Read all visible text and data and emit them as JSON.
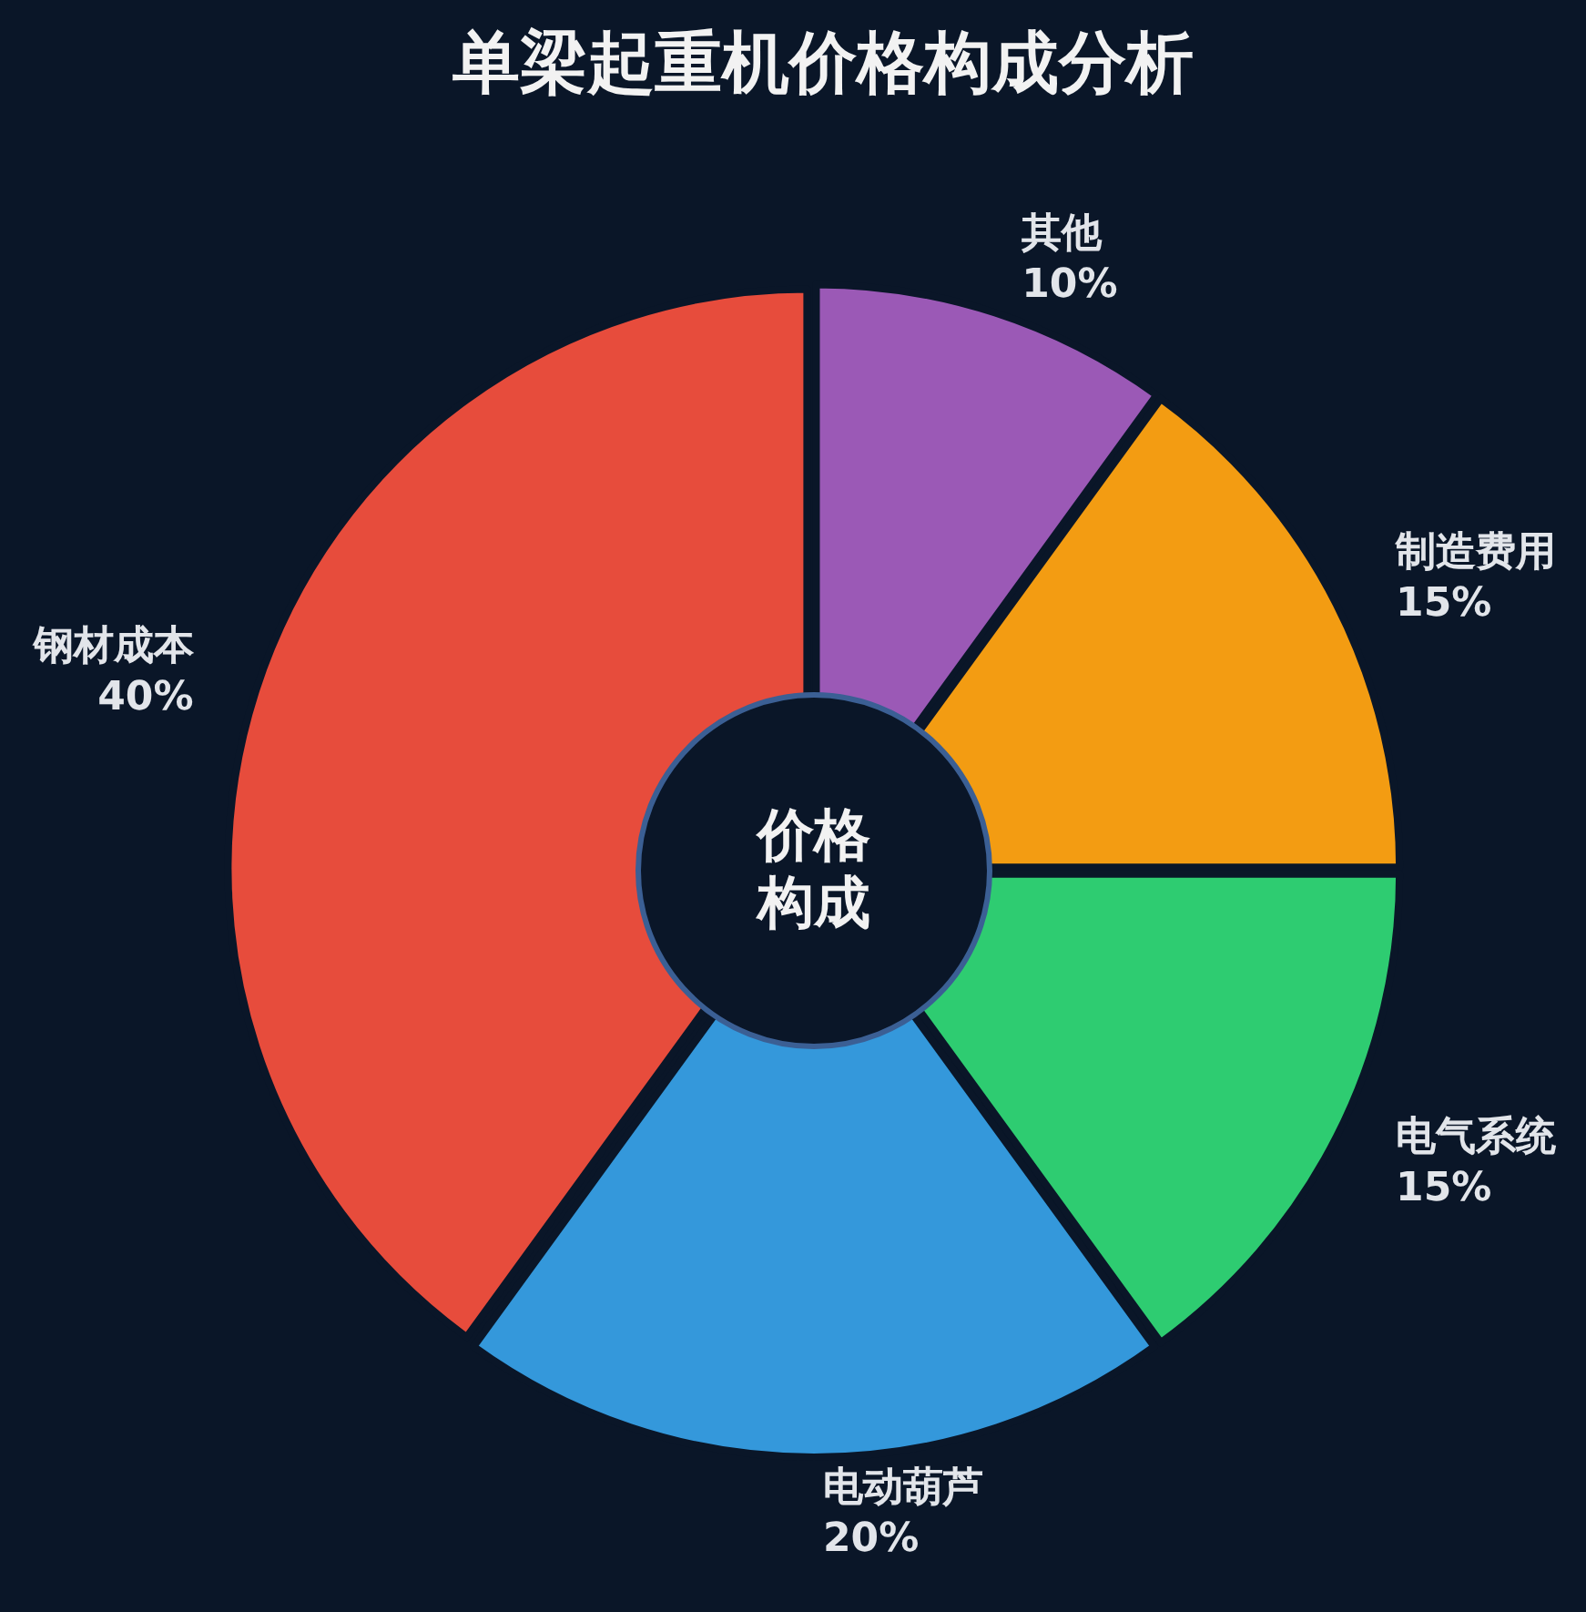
{
  "chart_data": {
    "type": "donut",
    "title": "单梁起重机价格构成分析",
    "categories": [
      "其他",
      "制造费用",
      "电气系统",
      "电动葫芦",
      "钢材成本"
    ],
    "values": [
      10,
      15,
      15,
      20,
      40
    ],
    "colors": [
      "#9b59b6",
      "#f39c12",
      "#2ecc71",
      "#3498db",
      "#e74c3c"
    ],
    "value_labels": [
      "10%",
      "15%",
      "15%",
      "20%",
      "40%"
    ],
    "annotations": [
      "价格构成"
    ]
  }
}
